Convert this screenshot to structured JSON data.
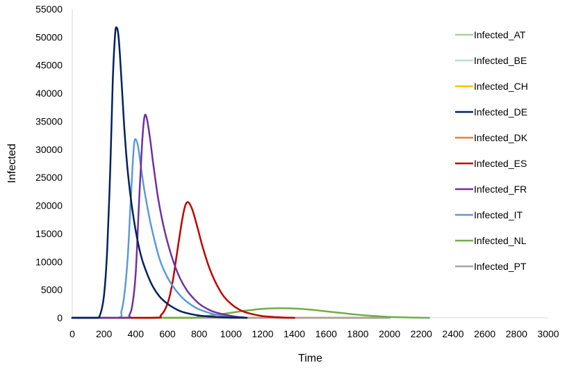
{
  "chart_data": {
    "type": "line",
    "title": "",
    "xlabel": "Time",
    "ylabel": "Infected",
    "xlim": [
      0,
      3000
    ],
    "ylim": [
      0,
      55000
    ],
    "xticks": [
      "0",
      "200",
      "400",
      "600",
      "800",
      "1000",
      "1200",
      "1400",
      "1600",
      "1800",
      "2000",
      "2200",
      "2400",
      "2600",
      "2800",
      "3000"
    ],
    "yticks": [
      "0",
      "5000",
      "10000",
      "15000",
      "20000",
      "25000",
      "30000",
      "35000",
      "40000",
      "45000",
      "50000",
      "55000"
    ],
    "legend_position": "right",
    "series": [
      {
        "name": "Infected_AT",
        "color": "#A9D18E",
        "x": [
          0,
          2000
        ],
        "y": [
          0,
          0
        ]
      },
      {
        "name": "Infected_BE",
        "color": "#BDD7EE",
        "x": [
          0,
          2000
        ],
        "y": [
          0,
          0
        ]
      },
      {
        "name": "Infected_CH",
        "color": "#FFC000",
        "x": [
          0,
          2000
        ],
        "y": [
          0,
          0
        ]
      },
      {
        "name": "Infected_DE",
        "color": "#002060",
        "x": [
          0,
          150,
          175,
          200,
          220,
          240,
          255,
          270,
          280,
          290,
          300,
          315,
          330,
          350,
          375,
          400,
          425,
          450,
          500,
          550,
          600,
          650,
          700,
          800,
          900,
          1000,
          1100
        ],
        "y": [
          0,
          0,
          500,
          4000,
          12000,
          27000,
          42000,
          50500,
          51700,
          50500,
          47000,
          40000,
          33000,
          26000,
          20000,
          15500,
          12000,
          9500,
          6000,
          3800,
          2500,
          1600,
          1000,
          400,
          150,
          50,
          0
        ]
      },
      {
        "name": "Infected_DK",
        "color": "#ED7D31",
        "x": [
          0,
          2000
        ],
        "y": [
          0,
          0
        ]
      },
      {
        "name": "Infected_ES",
        "color": "#C00000",
        "x": [
          0,
          500,
          560,
          600,
          630,
          660,
          690,
          710,
          725,
          740,
          760,
          790,
          820,
          860,
          900,
          950,
          1000,
          1050,
          1100,
          1200,
          1300,
          1400
        ],
        "y": [
          0,
          0,
          500,
          2500,
          6000,
          11500,
          17000,
          19800,
          20600,
          20300,
          19000,
          16000,
          12800,
          9200,
          6500,
          4000,
          2500,
          1500,
          900,
          300,
          100,
          0
        ]
      },
      {
        "name": "Infected_FR",
        "color": "#7030A0",
        "x": [
          0,
          330,
          360,
          380,
          400,
          420,
          440,
          455,
          470,
          490,
          510,
          540,
          570,
          600,
          640,
          680,
          720,
          760,
          800,
          850,
          900,
          1000,
          1100
        ],
        "y": [
          0,
          0,
          500,
          2500,
          8000,
          20000,
          31000,
          35800,
          35500,
          32000,
          27500,
          21500,
          17000,
          13500,
          9800,
          7000,
          5000,
          3600,
          2500,
          1600,
          1000,
          350,
          0
        ]
      },
      {
        "name": "Infected_IT",
        "color": "#5B9BD5",
        "x": [
          0,
          280,
          310,
          330,
          350,
          365,
          380,
          390,
          400,
          415,
          430,
          450,
          475,
          500,
          550,
          600,
          650,
          700,
          750,
          800,
          900,
          1000,
          1100
        ],
        "y": [
          0,
          0,
          1200,
          4500,
          11000,
          19000,
          27000,
          31000,
          31800,
          30500,
          27500,
          23500,
          19500,
          16000,
          10500,
          7200,
          5000,
          3400,
          2300,
          1500,
          600,
          200,
          0
        ]
      },
      {
        "name": "Infected_NL",
        "color": "#70AD47",
        "x": [
          0,
          700,
          800,
          900,
          1000,
          1100,
          1200,
          1300,
          1400,
          1500,
          1600,
          1700,
          1800,
          1900,
          2000,
          2100,
          2200,
          2250
        ],
        "y": [
          0,
          0,
          200,
          500,
          900,
          1300,
          1600,
          1700,
          1650,
          1450,
          1150,
          850,
          550,
          320,
          160,
          70,
          20,
          0
        ]
      },
      {
        "name": "Infected_PT",
        "color": "#A5A5A5",
        "x": [
          0,
          2000
        ],
        "y": [
          0,
          0
        ]
      }
    ]
  }
}
